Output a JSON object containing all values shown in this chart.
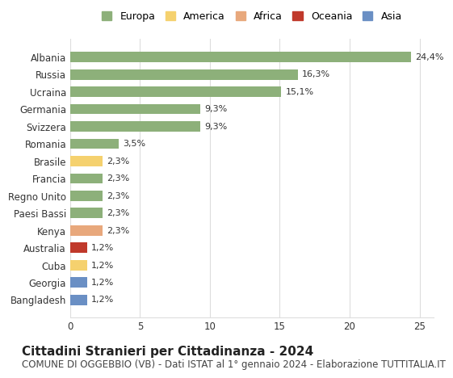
{
  "categories": [
    "Bangladesh",
    "Georgia",
    "Cuba",
    "Australia",
    "Kenya",
    "Paesi Bassi",
    "Regno Unito",
    "Francia",
    "Brasile",
    "Romania",
    "Svizzera",
    "Germania",
    "Ucraina",
    "Russia",
    "Albania"
  ],
  "values": [
    1.2,
    1.2,
    1.2,
    1.2,
    2.3,
    2.3,
    2.3,
    2.3,
    2.3,
    3.5,
    9.3,
    9.3,
    15.1,
    16.3,
    24.4
  ],
  "labels": [
    "1,2%",
    "1,2%",
    "1,2%",
    "1,2%",
    "2,3%",
    "2,3%",
    "2,3%",
    "2,3%",
    "2,3%",
    "3,5%",
    "9,3%",
    "9,3%",
    "15,1%",
    "16,3%",
    "24,4%"
  ],
  "bar_colors": [
    "#6a8fc4",
    "#6a8fc4",
    "#f5d16e",
    "#c0392b",
    "#e8a87c",
    "#8db07a",
    "#8db07a",
    "#8db07a",
    "#f5d16e",
    "#8db07a",
    "#8db07a",
    "#8db07a",
    "#8db07a",
    "#8db07a",
    "#8db07a"
  ],
  "legend_labels": [
    "Europa",
    "America",
    "Africa",
    "Oceania",
    "Asia"
  ],
  "legend_colors": [
    "#8db07a",
    "#f5d16e",
    "#e8a87c",
    "#c0392b",
    "#6a8fc4"
  ],
  "title": "Cittadini Stranieri per Cittadinanza - 2024",
  "subtitle": "COMUNE DI OGGEBBIO (VB) - Dati ISTAT al 1° gennaio 2024 - Elaborazione TUTTITALIA.IT",
  "xlim": [
    0,
    26
  ],
  "xticks": [
    0,
    5,
    10,
    15,
    20,
    25
  ],
  "background_color": "#ffffff",
  "grid_color": "#dddddd",
  "bar_height": 0.6,
  "title_fontsize": 11,
  "subtitle_fontsize": 8.5,
  "label_fontsize": 8,
  "tick_fontsize": 8.5,
  "legend_fontsize": 9
}
